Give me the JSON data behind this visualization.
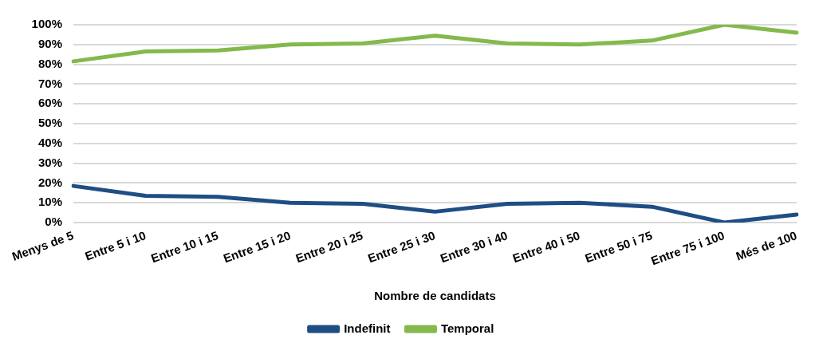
{
  "chart_data": {
    "type": "line",
    "xlabel": "Nombre de candidats",
    "categories": [
      "Menys de 5",
      "Entre 5 i 10",
      "Entre 10 i 15",
      "Entre 15 i 20",
      "Entre 20 i 25",
      "Entre 25 i 30",
      "Entre 30 i 40",
      "Entre 40 i 50",
      "Entre 50 i 75",
      "Entre 75 i 100",
      "Més de 100"
    ],
    "series": [
      {
        "name": "Indefinit",
        "color": "#1f4e85",
        "values": [
          18.5,
          13.5,
          13,
          10,
          9.5,
          5.5,
          9.5,
          10,
          8,
          0,
          4
        ]
      },
      {
        "name": "Temporal",
        "color": "#84b94b",
        "values": [
          81.5,
          86.5,
          87,
          90,
          90.5,
          94.5,
          90.5,
          90,
          92,
          100,
          96
        ]
      }
    ],
    "ylim": [
      0,
      100
    ],
    "yticks": [
      {
        "value": 0,
        "label": "0%"
      },
      {
        "value": 10,
        "label": "10%"
      },
      {
        "value": 20,
        "label": "20%"
      },
      {
        "value": 30,
        "label": "30%"
      },
      {
        "value": 40,
        "label": "40%"
      },
      {
        "value": 50,
        "label": "50%"
      },
      {
        "value": 60,
        "label": "60%"
      },
      {
        "value": 70,
        "label": "70%"
      },
      {
        "value": 80,
        "label": "80%"
      },
      {
        "value": 90,
        "label": "90%"
      },
      {
        "value": 100,
        "label": "100%"
      }
    ],
    "grid": "y",
    "legend": "bottom",
    "marker": "none",
    "line_style": "solid"
  }
}
